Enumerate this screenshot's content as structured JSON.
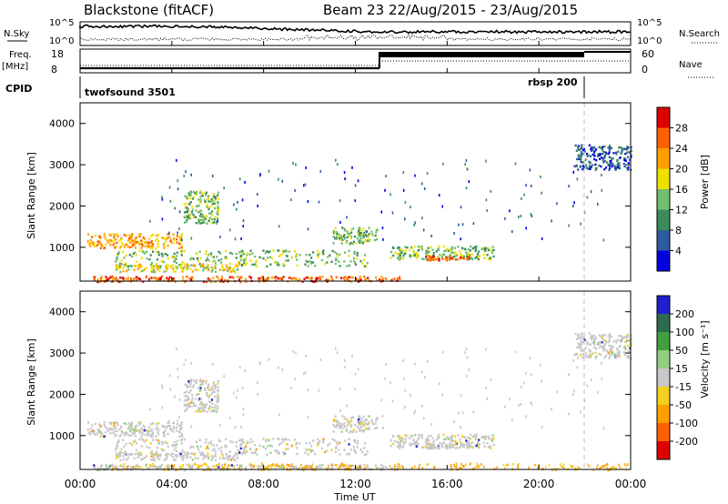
{
  "header": {
    "station": "Blackstone (fitACF)",
    "beam_date": "Beam 23  22/Aug/2015 - 23/Aug/2015"
  },
  "panels": {
    "nsky_label": "N.Sky",
    "nsky_ticks": [
      "10^5",
      "10^0"
    ],
    "nsearch_label": "N.Search",
    "nsearch_ticks": [
      "10^5",
      "10^0"
    ],
    "freq_label": "Freq.",
    "freq_unit": "[MHz]",
    "freq_ticks": [
      "18",
      "8"
    ],
    "nave_label": "Nave",
    "nave_ticks": [
      "60",
      "0"
    ],
    "cpid_label": "CPID",
    "cpid_modes": [
      "twofsound 3501",
      "rbsp 200"
    ]
  },
  "chart_data": [
    {
      "type": "heatmap",
      "name": "power",
      "ylabel": "Slant Range [km]",
      "xlabel": "",
      "colorbar_label": "Power [dB]",
      "colorbar_ticks": [
        "28",
        "24",
        "20",
        "16",
        "12",
        "8",
        "4"
      ],
      "colorbar_colors": [
        "#e00000",
        "#ff6000",
        "#ff9e00",
        "#f0e000",
        "#6fbf6f",
        "#3c8c5a",
        "#2e5a9e",
        "#0000e0"
      ],
      "ylim": [
        180,
        4500
      ],
      "yticks": [
        "4000",
        "3000",
        "2000",
        "1000"
      ],
      "regions": [
        {
          "t": [
            0.3,
            4.5
          ],
          "r": [
            1000,
            1350
          ],
          "level": 5
        },
        {
          "t": [
            4.5,
            6.0
          ],
          "r": [
            1600,
            2400
          ],
          "level": 3
        },
        {
          "t": [
            1.5,
            12.5
          ],
          "r": [
            560,
            950
          ],
          "level": 3
        },
        {
          "t": [
            1.5,
            7.0
          ],
          "r": [
            420,
            620
          ],
          "level": 4
        },
        {
          "t": [
            0.5,
            14.0
          ],
          "r": [
            180,
            320
          ],
          "level": 6
        },
        {
          "t": [
            11.0,
            13.0
          ],
          "r": [
            1100,
            1500
          ],
          "level": 3
        },
        {
          "t": [
            13.5,
            18.0
          ],
          "r": [
            720,
            1050
          ],
          "level": 3
        },
        {
          "t": [
            15.0,
            17.0
          ],
          "r": [
            700,
            820
          ],
          "level": 6
        },
        {
          "t": [
            21.5,
            24.0
          ],
          "r": [
            2900,
            3500
          ],
          "level": 1
        }
      ]
    },
    {
      "type": "heatmap",
      "name": "velocity",
      "ylabel": "Slant Range [km]",
      "xlabel": "Time UT",
      "colorbar_label": "Velocity [m s⁻¹]",
      "colorbar_ticks": [
        "200",
        "100",
        "50",
        "15",
        "-15",
        "-50",
        "-100",
        "-200"
      ],
      "colorbar_colors": [
        "#2020d0",
        "#2e6a4e",
        "#40a040",
        "#8fd080",
        "#c8c8c8",
        "#f0d020",
        "#ffa000",
        "#ff6000",
        "#e00000"
      ],
      "ylim": [
        180,
        4500
      ],
      "yticks": [
        "4000",
        "3000",
        "2000",
        "1000"
      ],
      "xticks": [
        "00:00",
        "04:00",
        "08:00",
        "12:00",
        "16:00",
        "20:00",
        "00:00"
      ],
      "xlim": [
        0,
        24
      ]
    }
  ]
}
